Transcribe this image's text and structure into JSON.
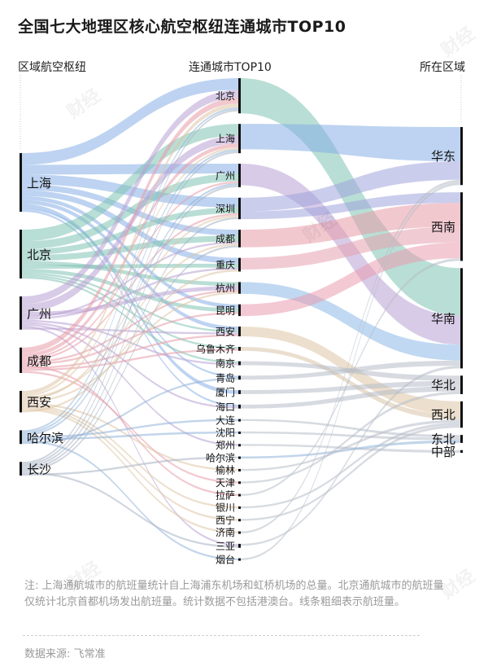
{
  "title": "全国七大地理区核心航空枢纽连通城市TOP10",
  "columns": {
    "left": "区域航空枢纽",
    "middle": "连通城市TOP10",
    "right": "所在区域"
  },
  "note": "注: 上海通航城市的航班量统计自上海浦东机场和虹桥机场的总量。北京通航城市的航班量仅统计北京首都机场发出航班量。统计数据不包括港澳台。线条粗细表示航班量。",
  "source": "数据来源: 飞常准",
  "watermark": "财经",
  "colors": {
    "北京": "#7fc3b3",
    "上海": "#86aee6",
    "广州": "#b8a0d4",
    "深圳": "#a0a4dc",
    "成都": "#e89aa7",
    "重庆": "#e6a0ae",
    "杭州": "#8cb8e6",
    "昆明": "#ea9cb0",
    "西安": "#dec4a4",
    "乌鲁木齐": "#d9c2a8",
    "哈尔滨": "#8fb3d8",
    "长沙": "#a8b2c2",
    "default": "#b7bdc8"
  },
  "chart_data": {
    "type": "sankey",
    "hubs": [
      {
        "name": "上海",
        "region": "华东"
      },
      {
        "name": "北京",
        "region": "华北"
      },
      {
        "name": "广州",
        "region": "华南"
      },
      {
        "name": "成都",
        "region": "西南"
      },
      {
        "name": "西安",
        "region": "西北"
      },
      {
        "name": "哈尔滨",
        "region": "东北"
      },
      {
        "name": "长沙",
        "region": "中部"
      }
    ],
    "cities": [
      "北京",
      "上海",
      "广州",
      "深圳",
      "成都",
      "重庆",
      "杭州",
      "昆明",
      "西安",
      "乌鲁木齐",
      "南京",
      "青岛",
      "厦门",
      "海口",
      "大连",
      "沈阳",
      "郑州",
      "哈尔滨",
      "榆林",
      "天津",
      "拉萨",
      "银川",
      "西宁",
      "济南",
      "三亚",
      "烟台"
    ],
    "regions": [
      "华东",
      "西南",
      "华南",
      "华北",
      "西北",
      "东北",
      "中部"
    ],
    "city_region_flows": [
      {
        "city": "北京",
        "region": "华南",
        "value": 18
      },
      {
        "city": "上海",
        "region": "华东",
        "value": 13
      },
      {
        "city": "广州",
        "region": "华南",
        "value": 11
      },
      {
        "city": "深圳",
        "region": "华东",
        "value": 7
      },
      {
        "city": "深圳",
        "region": "西南",
        "value": 4
      },
      {
        "city": "成都",
        "region": "西南",
        "value": 9
      },
      {
        "city": "重庆",
        "region": "西南",
        "value": 6
      },
      {
        "city": "杭州",
        "region": "华南",
        "value": 6
      },
      {
        "city": "昆明",
        "region": "西南",
        "value": 6
      },
      {
        "city": "西安",
        "region": "西北",
        "value": 5
      },
      {
        "city": "乌鲁木齐",
        "region": "西北",
        "value": 2
      },
      {
        "city": "南京",
        "region": "华北",
        "value": 2
      },
      {
        "city": "青岛",
        "region": "华南",
        "value": 2
      },
      {
        "city": "厦门",
        "region": "华北",
        "value": 2
      },
      {
        "city": "海口",
        "region": "华北",
        "value": 2
      },
      {
        "city": "大连",
        "region": "东北",
        "value": 1
      },
      {
        "city": "沈阳",
        "region": "东北",
        "value": 1
      },
      {
        "city": "郑州",
        "region": "中部",
        "value": 1
      },
      {
        "city": "哈尔滨",
        "region": "东北",
        "value": 1
      },
      {
        "city": "榆林",
        "region": "西北",
        "value": 1
      },
      {
        "city": "天津",
        "region": "华北",
        "value": 1
      },
      {
        "city": "拉萨",
        "region": "西南",
        "value": 1
      },
      {
        "city": "银川",
        "region": "西北",
        "value": 1
      },
      {
        "city": "西宁",
        "region": "西北",
        "value": 1
      },
      {
        "city": "济南",
        "region": "华东",
        "value": 1
      },
      {
        "city": "三亚",
        "region": "华南",
        "value": 1
      },
      {
        "city": "烟台",
        "region": "华东",
        "value": 1
      }
    ],
    "hub_city_flows": [
      {
        "hub": "上海",
        "city": "北京",
        "value": 6
      },
      {
        "hub": "上海",
        "city": "广州",
        "value": 5
      },
      {
        "hub": "上海",
        "city": "深圳",
        "value": 5
      },
      {
        "hub": "上海",
        "city": "成都",
        "value": 3
      },
      {
        "hub": "上海",
        "city": "重庆",
        "value": 3
      },
      {
        "hub": "上海",
        "city": "昆明",
        "value": 2
      },
      {
        "hub": "上海",
        "city": "西安",
        "value": 2
      },
      {
        "hub": "上海",
        "city": "厦门",
        "value": 2
      },
      {
        "hub": "上海",
        "city": "青岛",
        "value": 1
      },
      {
        "hub": "上海",
        "city": "海口",
        "value": 1
      },
      {
        "hub": "北京",
        "city": "上海",
        "value": 6
      },
      {
        "hub": "北京",
        "city": "广州",
        "value": 4
      },
      {
        "hub": "北京",
        "city": "深圳",
        "value": 3
      },
      {
        "hub": "北京",
        "city": "成都",
        "value": 3
      },
      {
        "hub": "北京",
        "city": "杭州",
        "value": 2
      },
      {
        "hub": "北京",
        "city": "重庆",
        "value": 2
      },
      {
        "hub": "北京",
        "city": "昆明",
        "value": 2
      },
      {
        "hub": "北京",
        "city": "西安",
        "value": 1
      },
      {
        "hub": "北京",
        "city": "乌鲁木齐",
        "value": 1
      },
      {
        "hub": "北京",
        "city": "南京",
        "value": 1
      },
      {
        "hub": "广州",
        "city": "北京",
        "value": 4
      },
      {
        "hub": "广州",
        "city": "上海",
        "value": 4
      },
      {
        "hub": "广州",
        "city": "杭州",
        "value": 2
      },
      {
        "hub": "广州",
        "city": "成都",
        "value": 1
      },
      {
        "hub": "广州",
        "city": "重庆",
        "value": 1
      },
      {
        "hub": "广州",
        "city": "南京",
        "value": 1
      },
      {
        "hub": "广州",
        "city": "海口",
        "value": 1
      },
      {
        "hub": "广州",
        "city": "郑州",
        "value": 1
      },
      {
        "hub": "广州",
        "city": "三亚",
        "value": 1
      },
      {
        "hub": "广州",
        "city": "西安",
        "value": 1
      },
      {
        "hub": "成都",
        "city": "北京",
        "value": 3
      },
      {
        "hub": "成都",
        "city": "上海",
        "value": 2
      },
      {
        "hub": "成都",
        "city": "广州",
        "value": 1
      },
      {
        "hub": "成都",
        "city": "深圳",
        "value": 1
      },
      {
        "hub": "成都",
        "city": "杭州",
        "value": 1
      },
      {
        "hub": "成都",
        "city": "昆明",
        "value": 1
      },
      {
        "hub": "成都",
        "city": "拉萨",
        "value": 1
      },
      {
        "hub": "成都",
        "city": "西安",
        "value": 1
      },
      {
        "hub": "成都",
        "city": "乌鲁木齐",
        "value": 1
      },
      {
        "hub": "成都",
        "city": "天津",
        "value": 1
      },
      {
        "hub": "西安",
        "city": "北京",
        "value": 2
      },
      {
        "hub": "西安",
        "city": "上海",
        "value": 1
      },
      {
        "hub": "西安",
        "city": "成都",
        "value": 1
      },
      {
        "hub": "西安",
        "city": "深圳",
        "value": 1
      },
      {
        "hub": "西安",
        "city": "杭州",
        "value": 1
      },
      {
        "hub": "西安",
        "city": "榆林",
        "value": 1
      },
      {
        "hub": "西安",
        "city": "银川",
        "value": 1
      },
      {
        "hub": "西安",
        "city": "西宁",
        "value": 1
      },
      {
        "hub": "西安",
        "city": "济南",
        "value": 1
      },
      {
        "hub": "西安",
        "city": "重庆",
        "value": 1
      },
      {
        "hub": "哈尔滨",
        "city": "北京",
        "value": 1
      },
      {
        "hub": "哈尔滨",
        "city": "上海",
        "value": 1
      },
      {
        "hub": "哈尔滨",
        "city": "广州",
        "value": 1
      },
      {
        "hub": "哈尔滨",
        "city": "大连",
        "value": 1
      },
      {
        "hub": "哈尔滨",
        "city": "沈阳",
        "value": 1
      },
      {
        "hub": "哈尔滨",
        "city": "烟台",
        "value": 1
      },
      {
        "hub": "哈尔滨",
        "city": "青岛",
        "value": 1
      },
      {
        "hub": "长沙",
        "city": "北京",
        "value": 1
      },
      {
        "hub": "长沙",
        "city": "上海",
        "value": 1
      },
      {
        "hub": "长沙",
        "city": "广州",
        "value": 1
      },
      {
        "hub": "长沙",
        "city": "深圳",
        "value": 1
      },
      {
        "hub": "长沙",
        "city": "成都",
        "value": 1
      },
      {
        "hub": "长沙",
        "city": "三亚",
        "value": 1
      },
      {
        "hub": "长沙",
        "city": "哈尔滨",
        "value": 1
      }
    ]
  }
}
